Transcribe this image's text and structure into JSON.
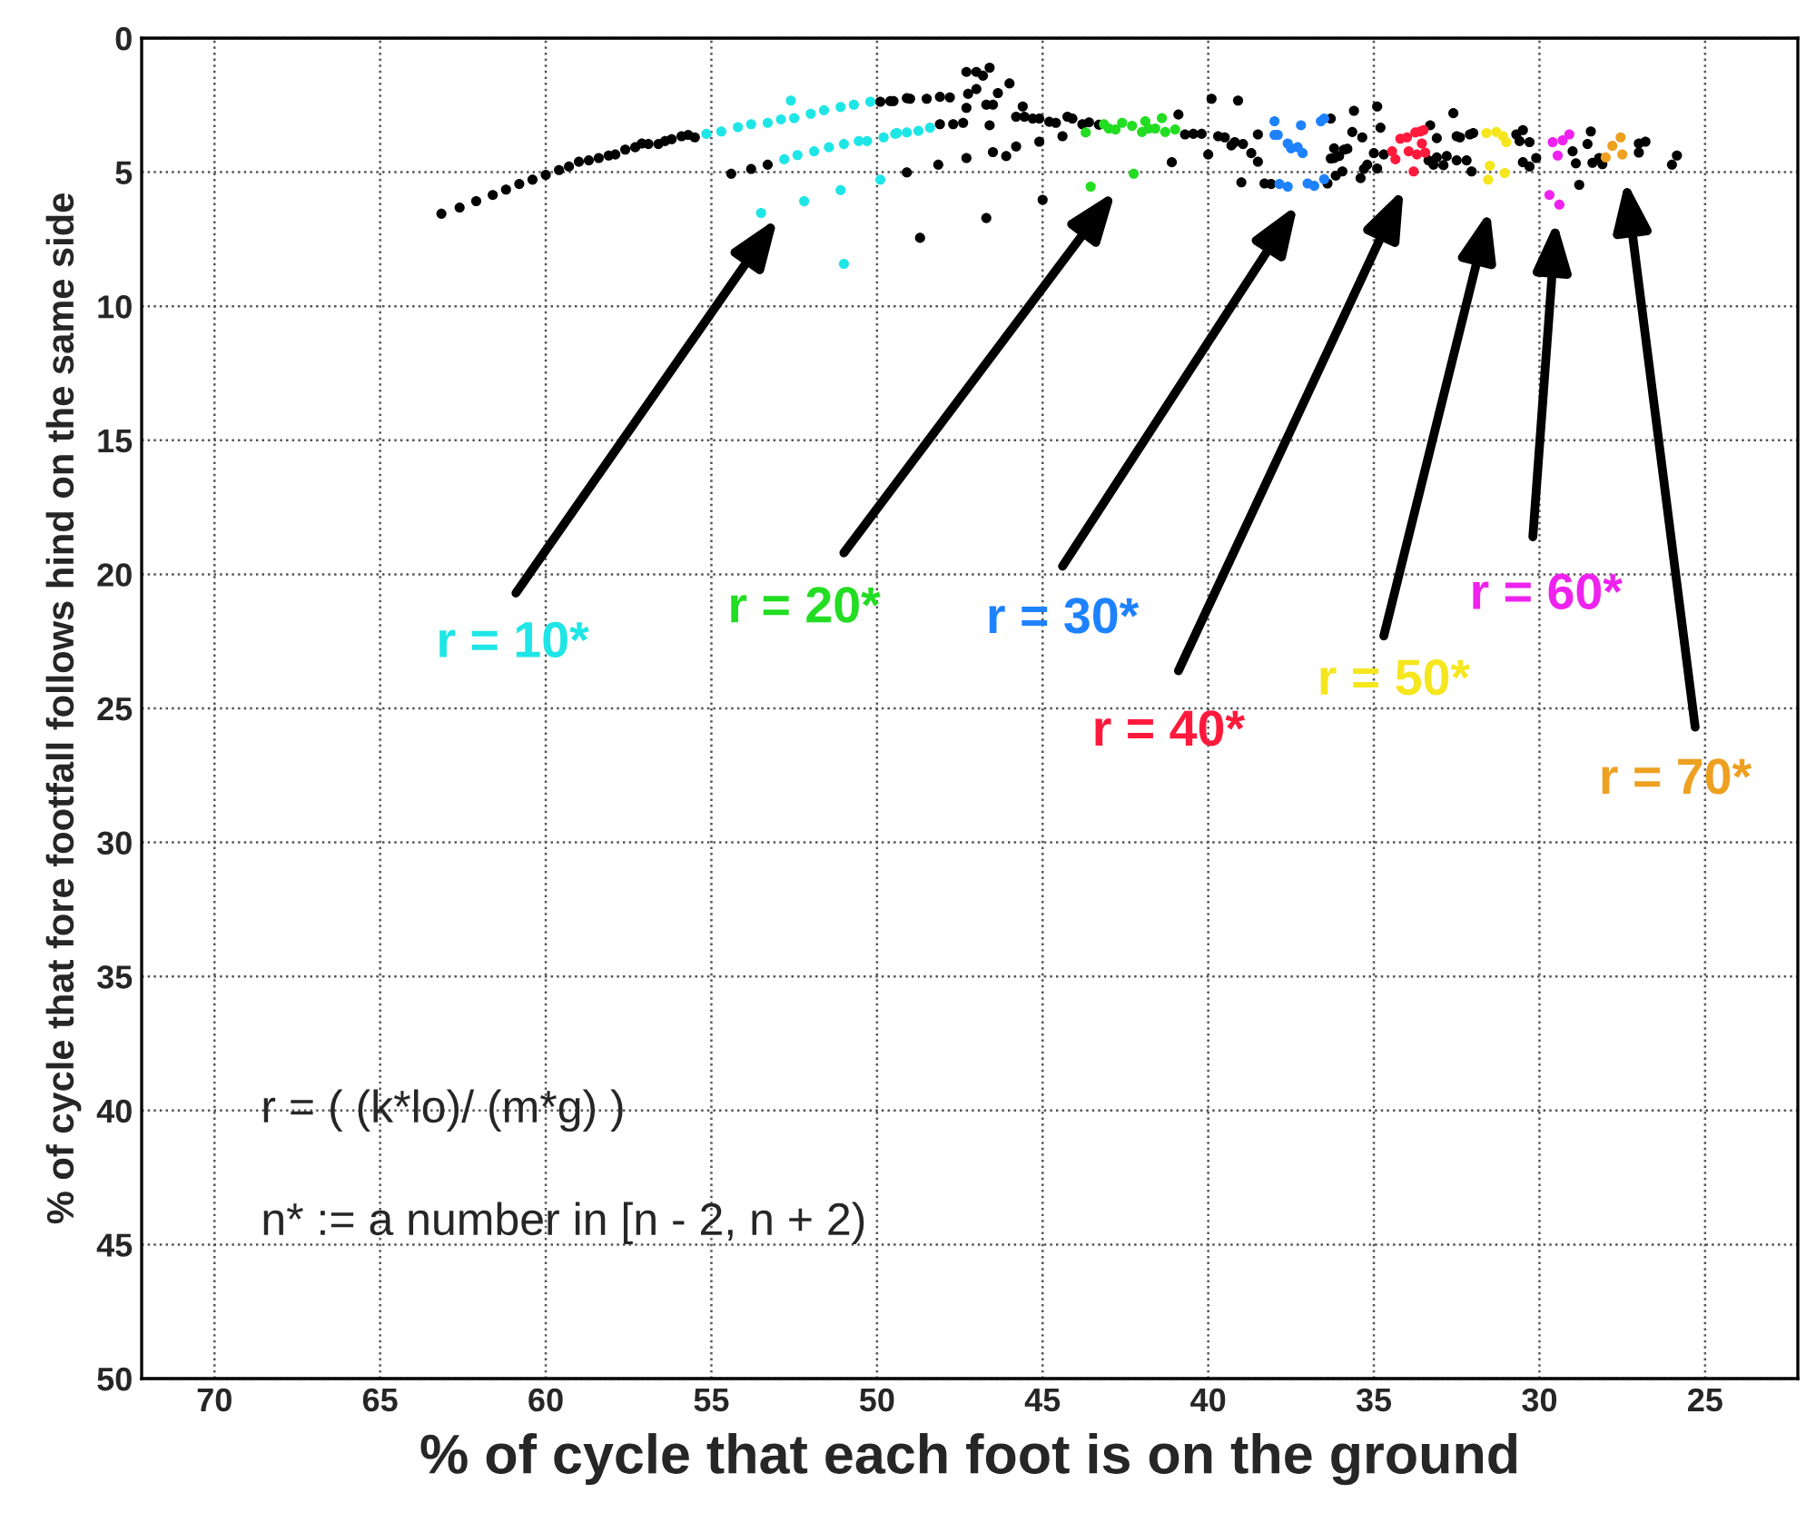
{
  "chart_data": {
    "type": "scatter",
    "xlabel": "% of cycle that each foot is on the ground",
    "ylabel": "% of cycle that fore footfall follows hind on the same side",
    "xlim": [
      72.2,
      22.2
    ],
    "xticks": [
      70,
      65,
      60,
      55,
      50,
      45,
      40,
      35,
      30,
      25
    ],
    "ylim": [
      50,
      0
    ],
    "yticks": [
      0,
      5,
      10,
      15,
      20,
      25,
      30,
      35,
      40,
      45,
      50
    ],
    "grid": true,
    "marker": "circle",
    "legend": false,
    "series": [
      {
        "color": "#000000",
        "x": [
          63.15,
          62.6,
          62.1,
          61.6,
          61.2,
          60.8,
          60.4,
          60.0,
          59.6,
          59.3,
          59.0,
          58.7,
          58.4,
          58.1,
          57.9,
          57.6,
          57.3,
          57.1,
          56.9,
          56.6,
          56.4,
          56.2,
          55.9,
          55.7,
          55.5,
          49.9,
          49.5,
          49.1,
          54.4,
          53.8,
          53.3,
          49.1,
          49.6,
          49.0,
          48.5,
          48.1,
          47.8,
          48.7,
          48.15,
          48.1,
          47.7,
          47.4,
          47.3,
          47.3,
          47.3,
          47.25,
          47.0,
          47.0,
          46.8,
          46.6,
          46.7,
          46.5,
          46.6,
          46.7,
          46.5,
          46.35,
          46.1,
          46.0,
          45.8,
          45.8,
          45.6,
          45.55,
          45.3,
          45.1,
          45.1,
          45.0,
          44.8,
          44.6,
          44.4,
          44.25,
          44.1,
          43.8,
          43.6,
          43.3,
          41.1,
          40.9,
          40.7,
          40.45,
          40.2,
          40.0,
          39.9,
          39.7,
          39.5,
          39.3,
          39.2,
          39.1,
          39.0,
          38.95,
          38.7,
          38.5,
          38.5,
          38.3,
          38.1,
          36.4,
          36.2,
          36.2,
          35.95,
          35.9,
          36.3,
          35.6,
          34.9,
          34.8,
          35.65,
          35.35,
          35.8,
          36.3,
          36.05,
          36.15,
          35.4,
          35.3,
          35.2,
          35.0,
          34.9,
          34.7,
          33.3,
          33.1,
          33.35,
          33.1,
          33.2,
          32.9,
          32.8,
          32.6,
          32.5,
          32.4,
          32.5,
          32.2,
          32.1,
          32.0,
          32.05,
          30.7,
          30.5,
          30.6,
          30.3,
          30.5,
          30.3,
          30.1,
          29.0,
          28.9,
          28.8,
          28.55,
          28.45,
          28.4,
          28.2,
          28.1,
          27.0,
          26.8,
          27.0,
          26.0,
          25.85
        ],
        "values": [
          6.55,
          6.32,
          6.08,
          5.85,
          5.65,
          5.44,
          5.28,
          5.1,
          4.92,
          4.79,
          4.61,
          4.56,
          4.47,
          4.38,
          4.34,
          4.16,
          4.07,
          3.93,
          3.95,
          3.95,
          3.84,
          3.77,
          3.66,
          3.61,
          3.7,
          2.37,
          2.35,
          2.24,
          5.06,
          4.88,
          4.72,
          5.01,
          2.35,
          2.26,
          2.26,
          2.19,
          2.21,
          7.45,
          4.72,
          3.21,
          3.21,
          3.16,
          2.6,
          1.26,
          4.47,
          2.08,
          1.26,
          1.9,
          1.4,
          1.1,
          2.48,
          2.48,
          3.25,
          6.71,
          4.25,
          2.05,
          4.4,
          1.69,
          4.04,
          2.93,
          2.55,
          2.93,
          3.0,
          3.0,
          3.86,
          6.03,
          3.12,
          3.16,
          3.66,
          2.93,
          3.0,
          3.21,
          3.14,
          3.23,
          4.63,
          2.85,
          3.59,
          3.57,
          3.57,
          4.34,
          2.26,
          3.66,
          3.7,
          4.0,
          3.88,
          2.33,
          5.38,
          3.95,
          4.29,
          4.61,
          3.59,
          5.42,
          5.44,
          5.42,
          4.11,
          4.47,
          4.97,
          4.16,
          3.0,
          2.71,
          2.55,
          3.34,
          3.5,
          3.7,
          4.13,
          4.49,
          4.4,
          5.13,
          5.22,
          4.88,
          4.72,
          4.29,
          4.86,
          4.34,
          3.25,
          3.73,
          4.56,
          4.45,
          4.72,
          4.74,
          4.4,
          2.8,
          3.66,
          3.7,
          4.56,
          4.56,
          3.59,
          3.54,
          4.97,
          3.59,
          3.43,
          3.84,
          3.88,
          4.63,
          4.79,
          4.47,
          4.22,
          4.67,
          5.47,
          3.95,
          3.48,
          4.65,
          4.47,
          4.7,
          3.93,
          3.86,
          4.27,
          4.72,
          4.38
        ]
      },
      {
        "color": "#1ee6e6",
        "x": [
          55.15,
          54.7,
          54.2,
          53.8,
          53.3,
          52.9,
          52.6,
          52.5,
          52.0,
          51.6,
          51.1,
          50.7,
          50.2,
          52.8,
          52.4,
          51.9,
          51.45,
          51.0,
          50.55,
          50.3,
          49.8,
          49.4,
          49.1,
          49.45,
          48.75,
          48.4,
          53.5,
          52.2,
          51.1,
          49.9,
          51.0
        ],
        "values": [
          3.57,
          3.48,
          3.32,
          3.21,
          3.16,
          3.03,
          2.33,
          2.98,
          2.82,
          2.69,
          2.57,
          2.48,
          2.37,
          4.52,
          4.36,
          4.22,
          4.07,
          3.95,
          3.84,
          3.84,
          3.7,
          3.54,
          3.52,
          3.57,
          3.46,
          3.34,
          6.52,
          6.08,
          5.67,
          5.28,
          8.42
        ]
      },
      {
        "color": "#22dd22",
        "x": [
          43.7,
          43.55,
          43.15,
          43.0,
          42.8,
          42.6,
          42.3,
          42.25,
          42.0,
          41.9,
          41.8,
          41.6,
          41.4,
          41.3,
          41.0
        ],
        "values": [
          3.52,
          5.54,
          3.21,
          3.37,
          3.41,
          3.16,
          3.27,
          5.06,
          3.5,
          3.1,
          3.37,
          3.37,
          2.98,
          3.5,
          3.41
        ]
      },
      {
        "color": "#1e82ff",
        "x": [
          38.0,
          38.0,
          37.9,
          37.85,
          37.6,
          37.6,
          37.5,
          37.3,
          37.2,
          37.15,
          37.0,
          36.8,
          36.6,
          36.5,
          36.5
        ],
        "values": [
          3.1,
          3.61,
          3.61,
          5.44,
          5.54,
          3.93,
          4.11,
          4.07,
          3.25,
          4.29,
          5.42,
          5.51,
          3.1,
          3.0,
          5.26
        ]
      },
      {
        "color": "#ff1a3c",
        "x": [
          34.45,
          34.35,
          34.2,
          34.0,
          33.95,
          33.75,
          33.8,
          33.7,
          33.6,
          33.5,
          33.55,
          33.45
        ],
        "values": [
          4.22,
          4.52,
          3.75,
          3.7,
          4.22,
          3.52,
          4.97,
          4.34,
          3.48,
          3.43,
          3.93,
          4.27
        ]
      },
      {
        "color": "#f5e61e",
        "x": [
          31.6,
          31.5,
          31.55,
          31.3,
          31.1,
          31.0,
          31.05
        ],
        "values": [
          3.54,
          4.76,
          5.28,
          3.5,
          3.66,
          3.88,
          5.03
        ]
      },
      {
        "color": "#ee22ee",
        "x": [
          29.6,
          29.45,
          29.3,
          29.1,
          29.7,
          29.4
        ],
        "values": [
          3.88,
          4.38,
          3.81,
          3.59,
          5.85,
          6.21
        ]
      },
      {
        "color": "#eea020",
        "x": [
          28.0,
          27.8,
          27.55,
          27.5
        ],
        "values": [
          4.45,
          4.02,
          3.7,
          4.34
        ]
      }
    ],
    "annotations": [
      "r = 10*",
      "r = 20*",
      "r = 30*",
      "r = 40*",
      "r = 50*",
      "r = 60*",
      "r = 70*",
      "r = ( (k*lo)/ (m*g) )",
      "n* := a number in [n - 2, n + 2)"
    ]
  }
}
